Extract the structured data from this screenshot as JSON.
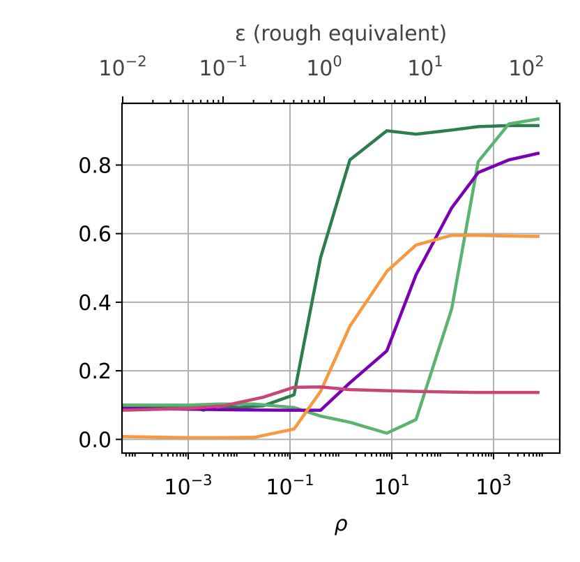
{
  "chart_data": {
    "type": "line",
    "xlabel": "ρ",
    "x2label": "ε (rough equivalent)",
    "xscale": "log",
    "x_ticks": [
      "10^-3",
      "10^-1",
      "10^1",
      "10^3"
    ],
    "x2_ticks": [
      "10^-2",
      "10^-1",
      "10^0",
      "10^1",
      "10^2"
    ],
    "y_ticks": [
      "0.0",
      "0.2",
      "0.4",
      "0.6",
      "0.8"
    ],
    "xlim": [
      5e-05,
      20000
    ],
    "ylim": [
      -0.04,
      0.98
    ],
    "grid": true,
    "colors": {
      "dark_green": "#2e7d4f",
      "light_green": "#5ab36e",
      "purple": "#7b00b4",
      "orange": "#f7993e",
      "pink": "#c8457a"
    },
    "series": [
      {
        "color": "#2e7d4f",
        "x": [
          5e-05,
          0.001,
          0.002,
          0.003,
          0.01,
          0.03,
          0.12,
          0.4,
          1.5,
          8,
          30,
          150,
          500,
          2000,
          8000
        ],
        "y": [
          0.098,
          0.098,
          0.085,
          0.098,
          0.093,
          0.098,
          0.13,
          0.53,
          0.815,
          0.9,
          0.89,
          0.902,
          0.912,
          0.915,
          0.915
        ]
      },
      {
        "color": "#5ab36e",
        "x": [
          5e-05,
          0.001,
          0.004,
          0.02,
          0.12,
          0.4,
          1.5,
          8,
          30,
          150,
          500,
          2000,
          8000
        ],
        "y": [
          0.1,
          0.1,
          0.103,
          0.103,
          0.093,
          0.068,
          0.05,
          0.018,
          0.058,
          0.38,
          0.81,
          0.92,
          0.935
        ]
      },
      {
        "color": "#7b00b4",
        "x": [
          5e-05,
          0.001,
          0.01,
          0.12,
          0.4,
          1.5,
          8,
          30,
          150,
          500,
          2000,
          8000
        ],
        "y": [
          0.09,
          0.088,
          0.086,
          0.085,
          0.085,
          0.165,
          0.258,
          0.48,
          0.675,
          0.778,
          0.815,
          0.835
        ]
      },
      {
        "color": "#f7993e",
        "x": [
          5e-05,
          0.001,
          0.004,
          0.02,
          0.12,
          0.4,
          1.5,
          8,
          30,
          150,
          500,
          2000,
          8000
        ],
        "y": [
          0.008,
          0.005,
          0.005,
          0.006,
          0.03,
          0.14,
          0.33,
          0.49,
          0.567,
          0.595,
          0.595,
          0.593,
          0.592
        ]
      },
      {
        "color": "#c8457a",
        "x": [
          5e-05,
          0.001,
          0.005,
          0.03,
          0.12,
          0.4,
          1.5,
          8,
          30,
          150,
          500,
          2000,
          8000
        ],
        "y": [
          0.085,
          0.09,
          0.098,
          0.123,
          0.152,
          0.153,
          0.145,
          0.142,
          0.14,
          0.138,
          0.137,
          0.137,
          0.137
        ]
      }
    ]
  }
}
